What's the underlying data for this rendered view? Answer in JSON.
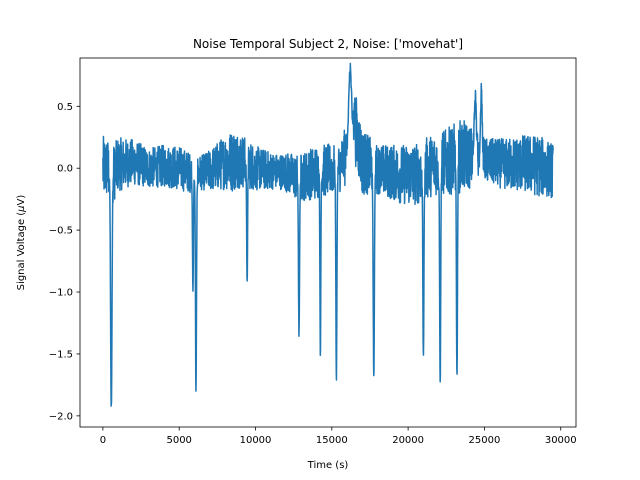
{
  "chart_data": {
    "type": "line",
    "title": "Noise Temporal Subject 2, Noise: ['movehat']",
    "xlabel": "Time (s)",
    "ylabel_prefix": "Signal Voltage (",
    "ylabel_unit_symbol": "μ",
    "ylabel_suffix": "V)",
    "xlim": [
      -1500,
      31000
    ],
    "ylim": [
      -2.09,
      0.89
    ],
    "xticks": [
      0,
      5000,
      10000,
      15000,
      20000,
      25000,
      30000
    ],
    "xtick_labels": [
      "0",
      "5000",
      "10000",
      "15000",
      "20000",
      "25000",
      "30000"
    ],
    "yticks": [
      0.5,
      0.0,
      -0.5,
      -1.0,
      -1.5,
      -2.0
    ],
    "ytick_labels": [
      "0.5",
      "0.0",
      "−0.5",
      "−1.0",
      "−1.5",
      "−2.0"
    ],
    "series": [
      {
        "color": "#1f77b4",
        "x_start": 0,
        "x_end": 29500,
        "baseline": [
          [
            0,
            0.0
          ],
          [
            300,
            0.0
          ],
          [
            600,
            -0.07
          ],
          [
            1000,
            0.03
          ],
          [
            2000,
            0.05
          ],
          [
            3000,
            0.0
          ],
          [
            4000,
            0.02
          ],
          [
            5000,
            0.0
          ],
          [
            6000,
            -0.05
          ],
          [
            7000,
            -0.02
          ],
          [
            8000,
            0.05
          ],
          [
            9000,
            0.07
          ],
          [
            10000,
            0.0
          ],
          [
            11000,
            -0.02
          ],
          [
            12000,
            -0.03
          ],
          [
            12800,
            -0.08
          ],
          [
            13500,
            -0.05
          ],
          [
            14500,
            -0.02
          ],
          [
            15500,
            0.0
          ],
          [
            16000,
            0.12
          ],
          [
            16500,
            0.35
          ],
          [
            17000,
            0.05
          ],
          [
            17800,
            0.0
          ],
          [
            18500,
            -0.02
          ],
          [
            19500,
            -0.05
          ],
          [
            20500,
            -0.05
          ],
          [
            21500,
            0.02
          ],
          [
            22500,
            0.05
          ],
          [
            23500,
            0.1
          ],
          [
            24500,
            0.08
          ],
          [
            25500,
            0.05
          ],
          [
            26500,
            0.03
          ],
          [
            27500,
            0.04
          ],
          [
            28500,
            0.02
          ],
          [
            29500,
            -0.02
          ]
        ],
        "noise_amplitude": [
          [
            0,
            0.26
          ],
          [
            1500,
            0.2
          ],
          [
            3000,
            0.16
          ],
          [
            5000,
            0.18
          ],
          [
            6500,
            0.14
          ],
          [
            8500,
            0.25
          ],
          [
            10000,
            0.18
          ],
          [
            11500,
            0.14
          ],
          [
            12500,
            0.18
          ],
          [
            14000,
            0.22
          ],
          [
            15500,
            0.2
          ],
          [
            16500,
            0.3
          ],
          [
            18000,
            0.2
          ],
          [
            20000,
            0.25
          ],
          [
            22000,
            0.25
          ],
          [
            23500,
            0.3
          ],
          [
            25000,
            0.18
          ],
          [
            27000,
            0.22
          ],
          [
            28500,
            0.25
          ],
          [
            29500,
            0.22
          ]
        ],
        "spikes": [
          {
            "x": 550,
            "min": -1.95,
            "width": 180
          },
          {
            "x": 5900,
            "min": -1.03,
            "width": 120
          },
          {
            "x": 6100,
            "min": -1.8,
            "width": 140
          },
          {
            "x": 9450,
            "min": -0.93,
            "width": 120
          },
          {
            "x": 12850,
            "min": -1.35,
            "width": 140
          },
          {
            "x": 14250,
            "min": -1.48,
            "width": 120
          },
          {
            "x": 15300,
            "min": -1.71,
            "width": 140
          },
          {
            "x": 17750,
            "min": -1.67,
            "width": 160
          },
          {
            "x": 21000,
            "min": -1.55,
            "width": 140
          },
          {
            "x": 22100,
            "min": -1.75,
            "width": 140
          },
          {
            "x": 23200,
            "min": -1.71,
            "width": 140
          }
        ],
        "peaks": [
          {
            "x": 16200,
            "max": 0.85,
            "width": 400
          },
          {
            "x": 24400,
            "max": 0.64,
            "width": 260
          },
          {
            "x": 24800,
            "max": 0.7,
            "width": 220
          }
        ]
      }
    ]
  }
}
